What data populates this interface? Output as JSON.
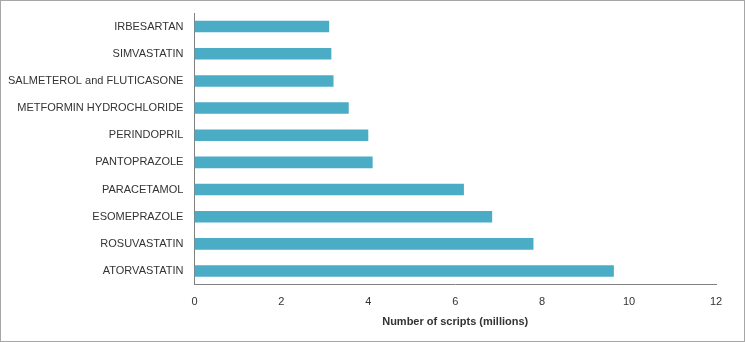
{
  "chart_data": {
    "type": "bar",
    "orientation": "horizontal",
    "x_label": "Number of scripts (millions)",
    "categories": [
      "IRBESARTAN",
      "SIMVASTATIN",
      "SALMETEROL and FLUTICASONE",
      "METFORMIN HYDROCHLORIDE",
      "PERINDOPRIL",
      "PANTOPRAZOLE",
      "PARACETAMOL",
      "ESOMEPRAZOLE",
      "ROSUVASTATIN",
      "ATORVASTATIN"
    ],
    "values": [
      3.1,
      3.15,
      3.2,
      3.55,
      4.0,
      4.1,
      6.2,
      6.85,
      7.8,
      9.65
    ],
    "color": "#4bacc6",
    "xlim": [
      0,
      12
    ],
    "xticks": [
      0,
      2,
      4,
      6,
      8,
      10,
      12
    ],
    "grid": false
  }
}
